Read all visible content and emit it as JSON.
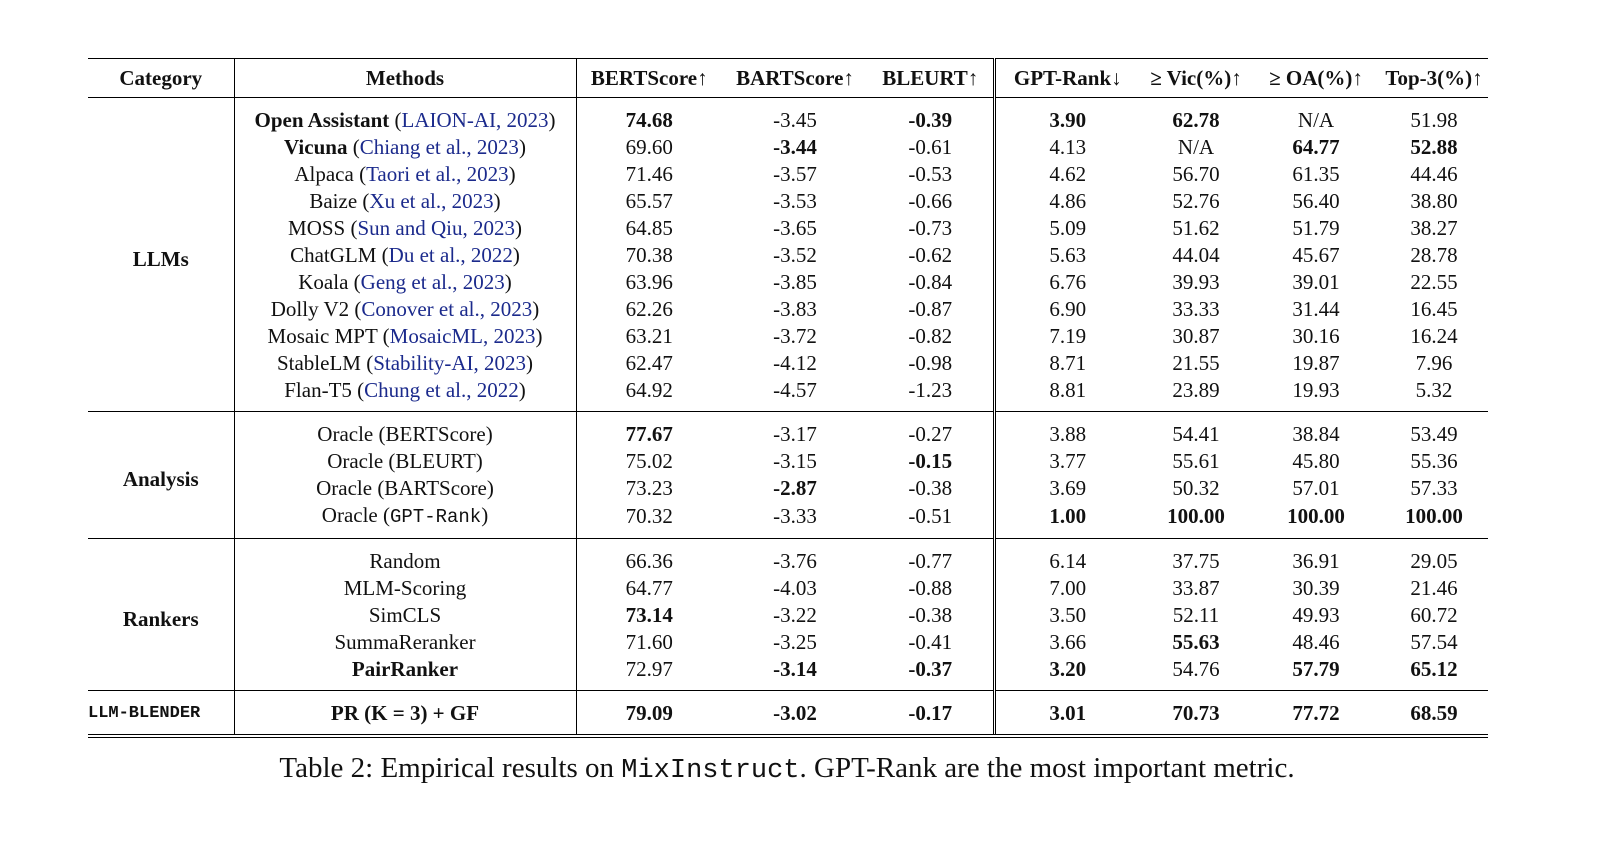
{
  "table": {
    "headers": [
      "Category",
      "Methods",
      "BERTScore↑",
      "BARTScore↑",
      "BLEURT↑",
      "GPT-Rank↓",
      "≥ Vic(%)↑",
      "≥ OA(%)↑",
      "Top-3(%)↑"
    ],
    "sections": [
      {
        "category": "LLMs",
        "rows": [
          {
            "method": "Open Assistant",
            "method_bold_prefix": "O A",
            "cite": "LAION-AI, 2023",
            "values": [
              "74.68",
              "-3.45",
              "-0.39",
              "3.90",
              "62.78",
              "N/A",
              "51.98"
            ],
            "bold": [
              0,
              2,
              3,
              4
            ]
          },
          {
            "method": "Vicuna",
            "cite": "Chiang et al., 2023",
            "values": [
              "69.60",
              "-3.44",
              "-0.61",
              "4.13",
              "N/A",
              "64.77",
              "52.88"
            ],
            "bold": [
              1,
              5,
              6
            ]
          },
          {
            "method": "Alpaca",
            "cite": "Taori et al., 2023",
            "values": [
              "71.46",
              "-3.57",
              "-0.53",
              "4.62",
              "56.70",
              "61.35",
              "44.46"
            ],
            "bold": []
          },
          {
            "method": "Baize",
            "cite": "Xu et al., 2023",
            "values": [
              "65.57",
              "-3.53",
              "-0.66",
              "4.86",
              "52.76",
              "56.40",
              "38.80"
            ],
            "bold": []
          },
          {
            "method": "MOSS",
            "cite": "Sun and Qiu, 2023",
            "values": [
              "64.85",
              "-3.65",
              "-0.73",
              "5.09",
              "51.62",
              "51.79",
              "38.27"
            ],
            "bold": []
          },
          {
            "method": "ChatGLM",
            "cite": "Du et al., 2022",
            "values": [
              "70.38",
              "-3.52",
              "-0.62",
              "5.63",
              "44.04",
              "45.67",
              "28.78"
            ],
            "bold": []
          },
          {
            "method": "Koala",
            "cite": "Geng et al., 2023",
            "values": [
              "63.96",
              "-3.85",
              "-0.84",
              "6.76",
              "39.93",
              "39.01",
              "22.55"
            ],
            "bold": []
          },
          {
            "method": "Dolly V2",
            "cite": "Conover et al., 2023",
            "values": [
              "62.26",
              "-3.83",
              "-0.87",
              "6.90",
              "33.33",
              "31.44",
              "16.45"
            ],
            "bold": []
          },
          {
            "method": "Mosaic MPT",
            "cite": "MosaicML, 2023",
            "values": [
              "63.21",
              "-3.72",
              "-0.82",
              "7.19",
              "30.87",
              "30.16",
              "16.24"
            ],
            "bold": []
          },
          {
            "method": "StableLM",
            "cite": "Stability-AI, 2023",
            "values": [
              "62.47",
              "-4.12",
              "-0.98",
              "8.71",
              "21.55",
              "19.87",
              "7.96"
            ],
            "bold": []
          },
          {
            "method": "Flan-T5",
            "cite": "Chung et al., 2022",
            "values": [
              "64.92",
              "-4.57",
              "-1.23",
              "8.81",
              "23.89",
              "19.93",
              "5.32"
            ],
            "bold": []
          }
        ]
      },
      {
        "category": "Analysis",
        "rows": [
          {
            "method": "Oracle (BERTScore)",
            "values": [
              "77.67",
              "-3.17",
              "-0.27",
              "3.88",
              "54.41",
              "38.84",
              "53.49"
            ],
            "bold": [
              0
            ]
          },
          {
            "method": "Oracle (BLEURT)",
            "values": [
              "75.02",
              "-3.15",
              "-0.15",
              "3.77",
              "55.61",
              "45.80",
              "55.36"
            ],
            "bold": [
              2
            ]
          },
          {
            "method": "Oracle (BARTScore)",
            "values": [
              "73.23",
              "-2.87",
              "-0.38",
              "3.69",
              "50.32",
              "57.01",
              "57.33"
            ],
            "bold": [
              1
            ]
          },
          {
            "method_prefix": "Oracle (",
            "method_mono": "GPT-Rank",
            "method_suffix": ")",
            "values": [
              "70.32",
              "-3.33",
              "-0.51",
              "1.00",
              "100.00",
              "100.00",
              "100.00"
            ],
            "bold": [
              3,
              4,
              5,
              6
            ]
          }
        ]
      },
      {
        "category": "Rankers",
        "rows": [
          {
            "method": "Random",
            "values": [
              "66.36",
              "-3.76",
              "-0.77",
              "6.14",
              "37.75",
              "36.91",
              "29.05"
            ],
            "bold": []
          },
          {
            "method": "MLM-Scoring",
            "values": [
              "64.77",
              "-4.03",
              "-0.88",
              "7.00",
              "33.87",
              "30.39",
              "21.46"
            ],
            "bold": []
          },
          {
            "method": "SimCLS",
            "values": [
              "73.14",
              "-3.22",
              "-0.38",
              "3.50",
              "52.11",
              "49.93",
              "60.72"
            ],
            "bold": [
              0
            ]
          },
          {
            "method": "SummaReranker",
            "values": [
              "71.60",
              "-3.25",
              "-0.41",
              "3.66",
              "55.63",
              "48.46",
              "57.54"
            ],
            "bold": [
              4
            ]
          },
          {
            "method": "PairRanker",
            "values": [
              "72.97",
              "-3.14",
              "-0.37",
              "3.20",
              "54.76",
              "57.79",
              "65.12"
            ],
            "bold": [
              1,
              2,
              3,
              5,
              6
            ],
            "method_bold": true
          }
        ]
      },
      {
        "category": "LLM-BLENDER",
        "rows": [
          {
            "method": "PR (K = 3) + GF",
            "values": [
              "79.09",
              "-3.02",
              "-0.17",
              "3.01",
              "70.73",
              "77.72",
              "68.59"
            ],
            "bold": [
              0,
              1,
              2,
              3,
              4,
              5,
              6
            ],
            "method_bold": true
          }
        ]
      }
    ]
  },
  "caption": {
    "prefix": "Table 2: Empirical results on ",
    "mono": "MixInstruct",
    "suffix": ". GPT-Rank are the most important metric."
  }
}
